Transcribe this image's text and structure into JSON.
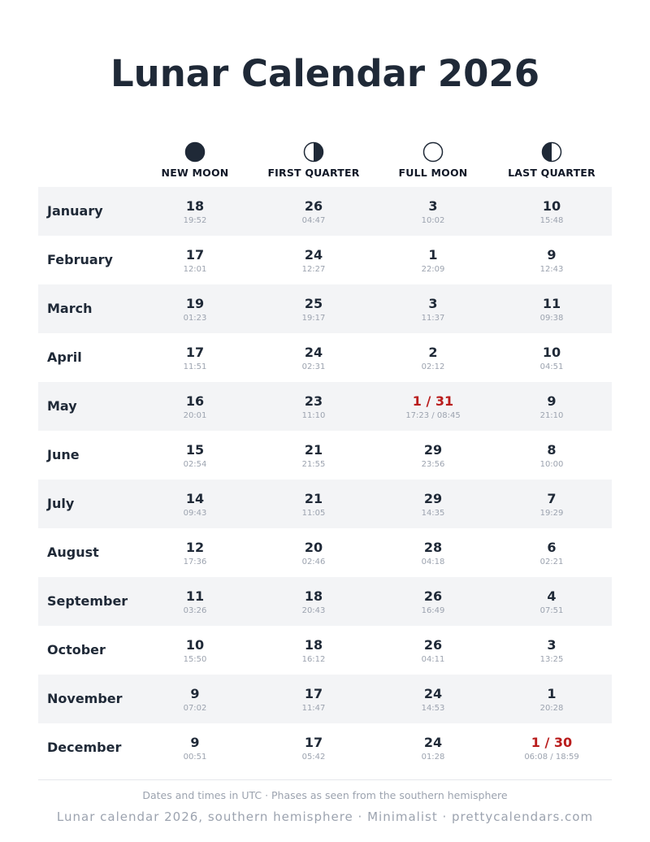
{
  "title": "Lunar Calendar 2026",
  "phases": [
    {
      "label": "NEW MOON",
      "icon": "new-moon-icon"
    },
    {
      "label": "FIRST QUARTER",
      "icon": "first-quarter-icon"
    },
    {
      "label": "FULL MOON",
      "icon": "full-moon-icon"
    },
    {
      "label": "LAST QUARTER",
      "icon": "last-quarter-icon"
    }
  ],
  "months": [
    {
      "name": "January",
      "cells": [
        {
          "day": "18",
          "time": "19:52"
        },
        {
          "day": "26",
          "time": "04:47"
        },
        {
          "day": "3",
          "time": "10:02"
        },
        {
          "day": "10",
          "time": "15:48"
        }
      ]
    },
    {
      "name": "February",
      "cells": [
        {
          "day": "17",
          "time": "12:01"
        },
        {
          "day": "24",
          "time": "12:27"
        },
        {
          "day": "1",
          "time": "22:09"
        },
        {
          "day": "9",
          "time": "12:43"
        }
      ]
    },
    {
      "name": "March",
      "cells": [
        {
          "day": "19",
          "time": "01:23"
        },
        {
          "day": "25",
          "time": "19:17"
        },
        {
          "day": "3",
          "time": "11:37"
        },
        {
          "day": "11",
          "time": "09:38"
        }
      ]
    },
    {
      "name": "April",
      "cells": [
        {
          "day": "17",
          "time": "11:51"
        },
        {
          "day": "24",
          "time": "02:31"
        },
        {
          "day": "2",
          "time": "02:12"
        },
        {
          "day": "10",
          "time": "04:51"
        }
      ]
    },
    {
      "name": "May",
      "cells": [
        {
          "day": "16",
          "time": "20:01"
        },
        {
          "day": "23",
          "time": "11:10"
        },
        {
          "day": "1 / 31",
          "time": "17:23 / 08:45",
          "double": true
        },
        {
          "day": "9",
          "time": "21:10"
        }
      ]
    },
    {
      "name": "June",
      "cells": [
        {
          "day": "15",
          "time": "02:54"
        },
        {
          "day": "21",
          "time": "21:55"
        },
        {
          "day": "29",
          "time": "23:56"
        },
        {
          "day": "8",
          "time": "10:00"
        }
      ]
    },
    {
      "name": "July",
      "cells": [
        {
          "day": "14",
          "time": "09:43"
        },
        {
          "day": "21",
          "time": "11:05"
        },
        {
          "day": "29",
          "time": "14:35"
        },
        {
          "day": "7",
          "time": "19:29"
        }
      ]
    },
    {
      "name": "August",
      "cells": [
        {
          "day": "12",
          "time": "17:36"
        },
        {
          "day": "20",
          "time": "02:46"
        },
        {
          "day": "28",
          "time": "04:18"
        },
        {
          "day": "6",
          "time": "02:21"
        }
      ]
    },
    {
      "name": "September",
      "cells": [
        {
          "day": "11",
          "time": "03:26"
        },
        {
          "day": "18",
          "time": "20:43"
        },
        {
          "day": "26",
          "time": "16:49"
        },
        {
          "day": "4",
          "time": "07:51"
        }
      ]
    },
    {
      "name": "October",
      "cells": [
        {
          "day": "10",
          "time": "15:50"
        },
        {
          "day": "18",
          "time": "16:12"
        },
        {
          "day": "26",
          "time": "04:11"
        },
        {
          "day": "3",
          "time": "13:25"
        }
      ]
    },
    {
      "name": "November",
      "cells": [
        {
          "day": "9",
          "time": "07:02"
        },
        {
          "day": "17",
          "time": "11:47"
        },
        {
          "day": "24",
          "time": "14:53"
        },
        {
          "day": "1",
          "time": "20:28"
        }
      ]
    },
    {
      "name": "December",
      "cells": [
        {
          "day": "9",
          "time": "00:51"
        },
        {
          "day": "17",
          "time": "05:42"
        },
        {
          "day": "24",
          "time": "01:28"
        },
        {
          "day": "1 / 30",
          "time": "06:08 / 18:59",
          "double": true
        }
      ]
    }
  ],
  "footer": {
    "note": "Dates and times in UTC · Phases as seen from the southern hemisphere",
    "brand": "Lunar calendar 2026, southern hemisphere · Minimalist · prettycalendars.com"
  },
  "colors": {
    "text": "#1f2937",
    "muted": "#9ca3af",
    "highlight": "#b91c1c",
    "stripe": "#f3f4f6"
  }
}
